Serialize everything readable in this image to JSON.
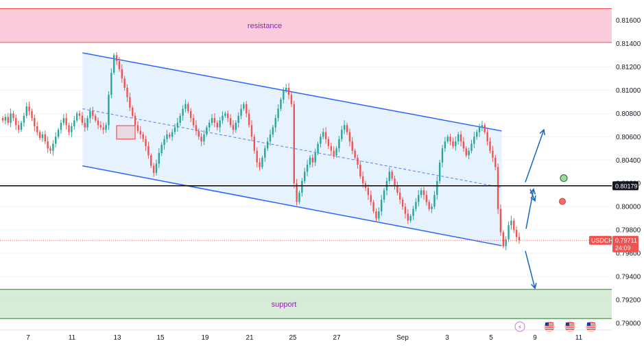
{
  "chart_data": {
    "type": "candlestick",
    "symbol": "USDCHF",
    "price_axis_ticks": [
      "0.81600",
      "0.81400",
      "0.81200",
      "0.81000",
      "0.80800",
      "0.80600",
      "0.80400",
      "0.80200",
      "0.80000",
      "0.79800",
      "0.79600",
      "0.79400",
      "0.79200",
      "0.79000"
    ],
    "ylim": [
      0.7897,
      0.817
    ],
    "time_axis_ticks": [
      "7",
      "11",
      "13",
      "15",
      "19",
      "21",
      "25",
      "27",
      "Sep",
      "3",
      "5",
      "9",
      "11"
    ],
    "zones": {
      "resistance": {
        "label": "resistance",
        "low": 0.8141,
        "high": 0.817,
        "color": "#f8bbd0"
      },
      "support": {
        "label": "support",
        "low": 0.7904,
        "high": 0.7929,
        "color": "#c8e6c9"
      }
    },
    "horizontal_level": {
      "value": 0.80179,
      "label": "0.80179"
    },
    "current_price": {
      "symbol": "USDCHF",
      "price": "0.79711",
      "countdown": "24:09",
      "value": 0.79711
    },
    "colors": {
      "up": "#26a69a",
      "down": "#ef5350",
      "channel": "#2962ff",
      "channel_fill": "#e3f0ff",
      "resistance_line": "#ef5350",
      "support_line": "#2e7d32",
      "arrow": "#1565c0"
    },
    "channel": {
      "upper": [
        [
          0.1349,
          0.8132
        ],
        [
          0.82,
          0.8065
        ]
      ],
      "lower": [
        [
          0.1349,
          0.8035
        ],
        [
          0.82,
          0.79665
        ]
      ],
      "midline": [
        [
          0.1349,
          0.8084
        ],
        [
          0.82,
          0.80165
        ]
      ]
    },
    "candles_close": [
      0.8074,
      0.8077,
      0.8072,
      0.808,
      0.8076,
      0.807,
      0.8066,
      0.8072,
      0.8078,
      0.8086,
      0.8082,
      0.8076,
      0.8069,
      0.8064,
      0.8059,
      0.8062,
      0.8056,
      0.805,
      0.8048,
      0.8054,
      0.806,
      0.8066,
      0.8072,
      0.8076,
      0.807,
      0.8064,
      0.8069,
      0.8074,
      0.808,
      0.8078,
      0.8072,
      0.8068,
      0.8076,
      0.8082,
      0.8078,
      0.8074,
      0.807,
      0.8068,
      0.8066,
      0.807,
      0.8096,
      0.8115,
      0.813,
      0.8125,
      0.8118,
      0.811,
      0.8102,
      0.8094,
      0.8085,
      0.8078,
      0.807,
      0.8065,
      0.8062,
      0.8058,
      0.8052,
      0.8044,
      0.8035,
      0.8029,
      0.8037,
      0.8046,
      0.8053,
      0.8058,
      0.8062,
      0.806,
      0.8064,
      0.8068,
      0.8072,
      0.8078,
      0.8084,
      0.8088,
      0.8082,
      0.8076,
      0.807,
      0.8065,
      0.806,
      0.8056,
      0.8062,
      0.8068,
      0.8072,
      0.8076,
      0.8072,
      0.8068,
      0.8074,
      0.8078,
      0.808,
      0.8076,
      0.807,
      0.8066,
      0.8072,
      0.8078,
      0.8084,
      0.8088,
      0.808,
      0.807,
      0.806,
      0.8048,
      0.8038,
      0.8034,
      0.8042,
      0.805,
      0.8056,
      0.8062,
      0.8068,
      0.8076,
      0.8084,
      0.8092,
      0.81,
      0.8102,
      0.8096,
      0.8088,
      0.802,
      0.8004,
      0.8012,
      0.8022,
      0.803,
      0.8036,
      0.8042,
      0.8038,
      0.8046,
      0.8054,
      0.806,
      0.8064,
      0.8058,
      0.8052,
      0.8048,
      0.8044,
      0.805,
      0.8058,
      0.8066,
      0.807,
      0.8064,
      0.8056,
      0.8048,
      0.8042,
      0.8036,
      0.8026,
      0.802,
      0.8016,
      0.801,
      0.8004,
      0.7996,
      0.799,
      0.7996,
      0.8006,
      0.8014,
      0.8022,
      0.803,
      0.8024,
      0.8018,
      0.8012,
      0.8006,
      0.8,
      0.7994,
      0.7988,
      0.7992,
      0.7998,
      0.8004,
      0.801,
      0.8014,
      0.801,
      0.8004,
      0.7998,
      0.8,
      0.801,
      0.8022,
      0.8038,
      0.805,
      0.8056,
      0.806,
      0.8056,
      0.8052,
      0.8056,
      0.8062,
      0.8056,
      0.805,
      0.8044,
      0.8048,
      0.8054,
      0.806,
      0.8064,
      0.8068,
      0.807,
      0.8064,
      0.8056,
      0.8048,
      0.8042,
      0.8034,
      0.7998,
      0.7978,
      0.7966,
      0.7972,
      0.7984,
      0.7988,
      0.798,
      0.7974,
      0.79711
    ]
  }
}
